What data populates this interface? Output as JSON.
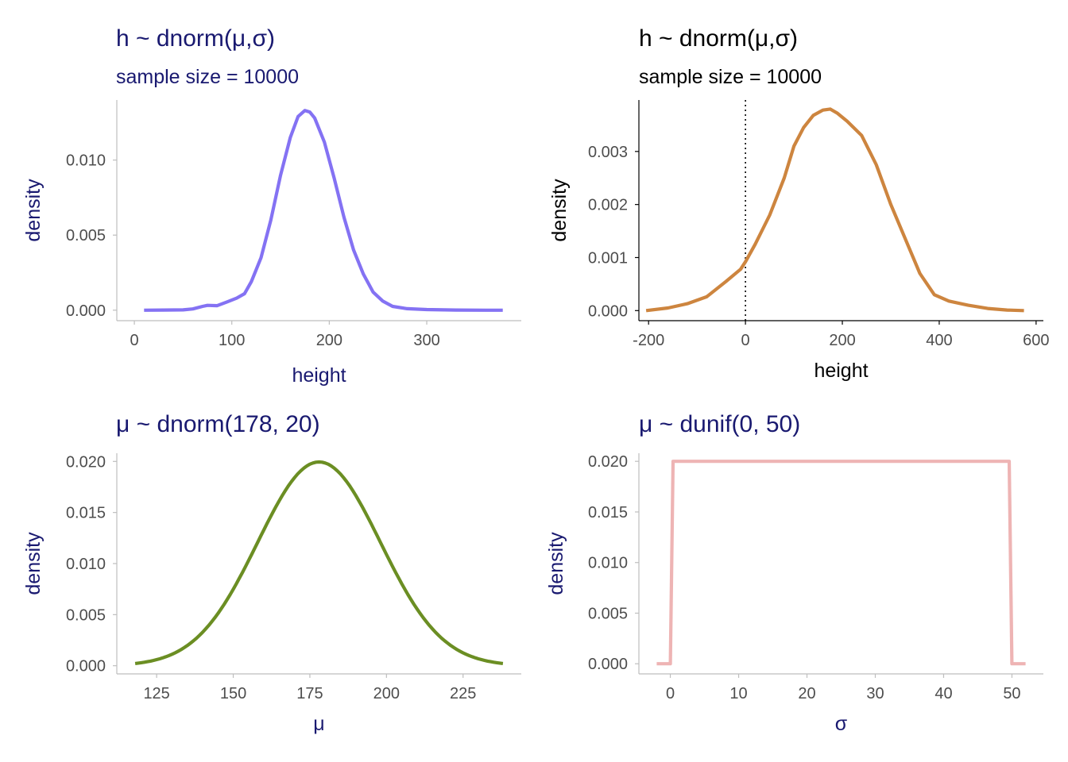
{
  "chart_data": [
    {
      "type": "line",
      "title": "h ~ dnorm(μ,σ)",
      "subtitle": "sample size = 10000",
      "xlabel": "height",
      "ylabel": "density",
      "title_color": "#191970",
      "line_color": "#8472F3",
      "axis_line_color": "#BEBEBE",
      "xlim": [
        -18,
        397
      ],
      "ylim": [
        -0.0007,
        0.014
      ],
      "xticks": [
        0,
        100,
        200,
        300
      ],
      "yticks": [
        0.0,
        0.005,
        0.01
      ],
      "ytick_labels": [
        "0.000",
        "0.005",
        "0.010"
      ],
      "reference_line_x": null,
      "series": [
        {
          "x": [
            10,
            30,
            50,
            60,
            70,
            75,
            85,
            95,
            105,
            113,
            120,
            130,
            140,
            150,
            160,
            168,
            175,
            180,
            185,
            195,
            205,
            215,
            225,
            235,
            245,
            255,
            265,
            280,
            300,
            330,
            360,
            378
          ],
          "y": [
            0.0,
            1e-05,
            2e-05,
            8e-05,
            0.00025,
            0.00032,
            0.0003,
            0.00055,
            0.0008,
            0.0011,
            0.0019,
            0.0035,
            0.006,
            0.009,
            0.0115,
            0.0129,
            0.0133,
            0.0132,
            0.0128,
            0.0112,
            0.0088,
            0.0062,
            0.004,
            0.0024,
            0.0012,
            0.0006,
            0.00025,
            0.0001,
            4e-05,
            1e-05,
            0.0,
            0.0
          ]
        }
      ]
    },
    {
      "type": "line",
      "title": "h ~ dnorm(μ,σ)",
      "subtitle": "sample size = 10000",
      "xlabel": "height",
      "ylabel": "density",
      "title_color": "#000000",
      "line_color": "#CD853F",
      "axis_line_color": "#000000",
      "xlim": [
        -220,
        615
      ],
      "ylim": [
        -0.00019,
        0.00397
      ],
      "xticks": [
        -200,
        0,
        200,
        400,
        600
      ],
      "yticks": [
        0.0,
        0.001,
        0.002,
        0.003
      ],
      "ytick_labels": [
        "0.000",
        "0.001",
        "0.002",
        "0.003"
      ],
      "reference_line_x": 0,
      "series": [
        {
          "x": [
            -205,
            -160,
            -120,
            -80,
            -40,
            -10,
            0,
            20,
            50,
            80,
            100,
            120,
            140,
            160,
            175,
            190,
            210,
            240,
            270,
            300,
            330,
            360,
            390,
            420,
            460,
            500,
            540,
            575
          ],
          "y": [
            0.0,
            5e-05,
            0.00013,
            0.00026,
            0.00055,
            0.00078,
            0.00092,
            0.00125,
            0.0018,
            0.0025,
            0.0031,
            0.00345,
            0.00368,
            0.00378,
            0.0038,
            0.00372,
            0.00357,
            0.0033,
            0.00275,
            0.002,
            0.00135,
            0.0007,
            0.0003,
            0.00018,
            0.0001,
            4e-05,
            1e-05,
            0.0
          ]
        }
      ]
    },
    {
      "type": "line",
      "title": "μ ~ dnorm(178, 20)",
      "subtitle": "",
      "xlabel": "μ",
      "ylabel": "density",
      "title_color": "#191970",
      "line_color": "#6B8E23",
      "axis_line_color": "#BEBEBE",
      "xlim": [
        112,
        244
      ],
      "ylim": [
        -0.0008,
        0.0208
      ],
      "xticks": [
        125,
        150,
        175,
        200,
        225
      ],
      "yticks": [
        0.0,
        0.005,
        0.01,
        0.015,
        0.02
      ],
      "ytick_labels": [
        "0.000",
        "0.005",
        "0.010",
        "0.015",
        "0.020"
      ],
      "reference_line_x": null,
      "normal_curve": {
        "mean": 178,
        "sd": 20,
        "from": 118,
        "to": 238
      }
    },
    {
      "type": "line",
      "title": "μ ~ dunif(0, 50)",
      "subtitle": "",
      "xlabel": "σ",
      "ylabel": "density",
      "title_color": "#191970",
      "line_color": "#EEB4B4",
      "axis_line_color": "#BEBEBE",
      "xlim": [
        -4.6,
        54.6
      ],
      "ylim": [
        -0.001,
        0.0208
      ],
      "xticks": [
        0,
        10,
        20,
        30,
        40,
        50
      ],
      "yticks": [
        0.0,
        0.005,
        0.01,
        0.015,
        0.02
      ],
      "ytick_labels": [
        "0.000",
        "0.005",
        "0.010",
        "0.015",
        "0.020"
      ],
      "reference_line_x": null,
      "series": [
        {
          "x": [
            -2,
            0,
            0.4,
            49.6,
            50,
            52
          ],
          "y": [
            0.0,
            0.0,
            0.02,
            0.02,
            0.0,
            0.0
          ]
        }
      ]
    }
  ]
}
